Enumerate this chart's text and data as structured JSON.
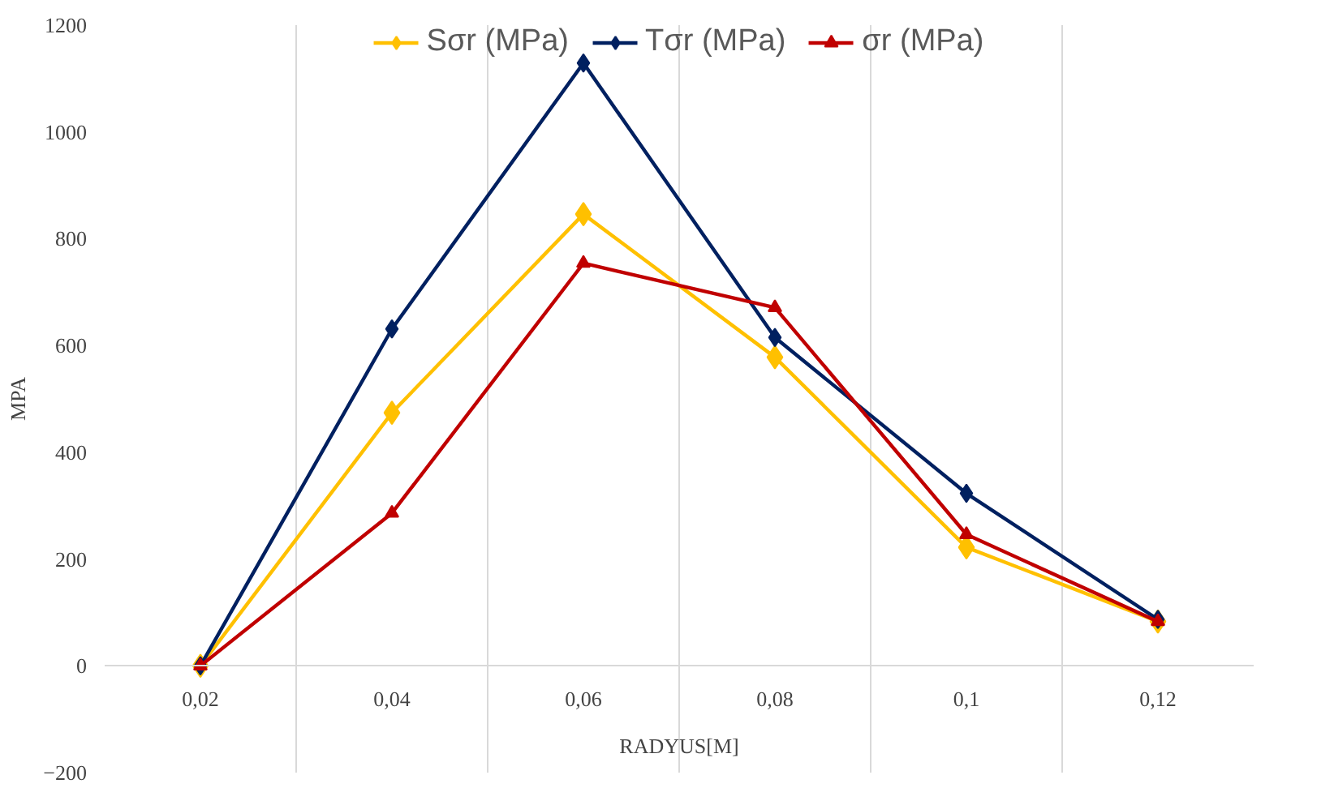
{
  "chart_data": {
    "type": "line",
    "xlabel": "RADYUS[M]",
    "ylabel": "MPA",
    "categories": [
      "0,02",
      "0,04",
      "0,06",
      "0,08",
      "0,1",
      "0,12"
    ],
    "series": [
      {
        "name": "Sσr (MPa)",
        "color": "#ffc000",
        "marker": "diamond",
        "values": [
          0,
          474,
          846,
          578,
          222,
          83
        ]
      },
      {
        "name": "Tσr (MPa)",
        "color": "#002060",
        "marker": "diamond",
        "values": [
          0,
          631,
          1129,
          615,
          323,
          87
        ]
      },
      {
        "name": "σr (MPa)",
        "color": "#c00000",
        "marker": "triangle",
        "values": [
          0,
          286,
          754,
          671,
          246,
          83
        ]
      }
    ],
    "ylim": [
      -200,
      1200
    ],
    "yticks": [
      -200,
      0,
      200,
      400,
      600,
      800,
      1000,
      1200
    ],
    "grid": "x",
    "legend": "top",
    "line_style": "solid"
  }
}
